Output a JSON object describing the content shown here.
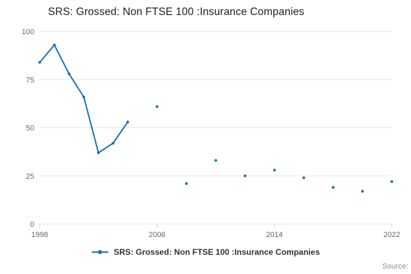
{
  "title": "SRS: Grossed: Non FTSE 100 :Insurance Companies",
  "legend": {
    "label": "SRS: Grossed: Non FTSE 100 :Insurance Companies"
  },
  "source": "Source:",
  "accent_color": "#1d70b8",
  "grid_color": "#e6e6e6",
  "tick_color": "#cccccc",
  "chart_data": {
    "type": "line",
    "title": "SRS: Grossed: Non FTSE 100 :Insurance Companies",
    "xlabel": "",
    "ylabel": "",
    "x": [
      1998,
      1999,
      2000,
      2001,
      2002,
      2003,
      2004,
      2006,
      2008,
      2010,
      2012,
      2014,
      2016,
      2018,
      2020,
      2022
    ],
    "values": [
      84,
      93,
      78,
      66,
      37,
      42,
      53,
      61,
      21,
      33,
      25,
      28,
      24,
      19,
      17,
      22
    ],
    "xlim": [
      1998,
      2022
    ],
    "ylim": [
      0,
      100
    ],
    "xticks": [
      1998,
      2006,
      2014,
      2022
    ],
    "yticks": [
      0,
      25,
      50,
      75,
      100
    ],
    "grid": "horizontal",
    "legend_position": "bottom",
    "marker": "dot",
    "note": "points are connected only when consecutive years; later points are biennial isolated dots"
  }
}
